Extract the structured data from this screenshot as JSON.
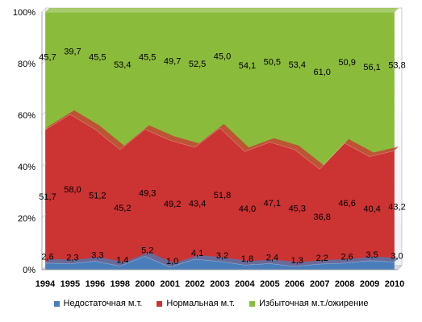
{
  "chart_data": {
    "type": "area",
    "stacked": true,
    "percent": true,
    "categories": [
      "1994",
      "1995",
      "1996",
      "1998",
      "2000",
      "2001",
      "2002",
      "2003",
      "2004",
      "2005",
      "2006",
      "2007",
      "2008",
      "2009",
      "2010"
    ],
    "series": [
      {
        "name": "Недостаточная м.т.",
        "color": "#4a7ebb",
        "values": [
          2.6,
          2.3,
          3.3,
          1.4,
          5.2,
          1.0,
          4.1,
          3.2,
          1.8,
          2.4,
          1.3,
          2.2,
          2.6,
          3.5,
          3.0
        ],
        "labels": [
          "2,6",
          "2,3",
          "3,3",
          "1,4",
          "5,2",
          "1,0",
          "4,1",
          "3,2",
          "1,8",
          "2,4",
          "1,3",
          "2,2",
          "2,6",
          "3,5",
          "3,0"
        ]
      },
      {
        "name": "Нормальная м.т.",
        "color": "#cc3333",
        "values": [
          51.7,
          58.0,
          51.2,
          45.2,
          49.3,
          49.2,
          43.4,
          51.8,
          44.0,
          47.1,
          45.3,
          36.8,
          46.6,
          40.4,
          43.2
        ],
        "labels": [
          "51,7",
          "58,0",
          "51,2",
          "45,2",
          "49,3",
          "49,2",
          "43,4",
          "51,8",
          "44,0",
          "47,1",
          "45,3",
          "36,8",
          "46,6",
          "40,4",
          "43,2"
        ]
      },
      {
        "name": "Избыточная м.т./ожирение",
        "color": "#8bbb3b",
        "values": [
          45.7,
          39.7,
          45.5,
          53.4,
          45.5,
          49.7,
          52.5,
          45.0,
          54.1,
          50.5,
          53.4,
          61.0,
          50.9,
          56.1,
          53.8
        ],
        "labels": [
          "45,7",
          "39,7",
          "45,5",
          "53,4",
          "45,5",
          "49,7",
          "52,5",
          "45,0",
          "54,1",
          "50,5",
          "53,4",
          "61,0",
          "50,9",
          "56,1",
          "53,8"
        ]
      }
    ],
    "y_ticks": [
      "0%",
      "20%",
      "40%",
      "60%",
      "80%",
      "100%"
    ],
    "ylim": [
      0,
      100
    ],
    "legend_position": "bottom"
  }
}
